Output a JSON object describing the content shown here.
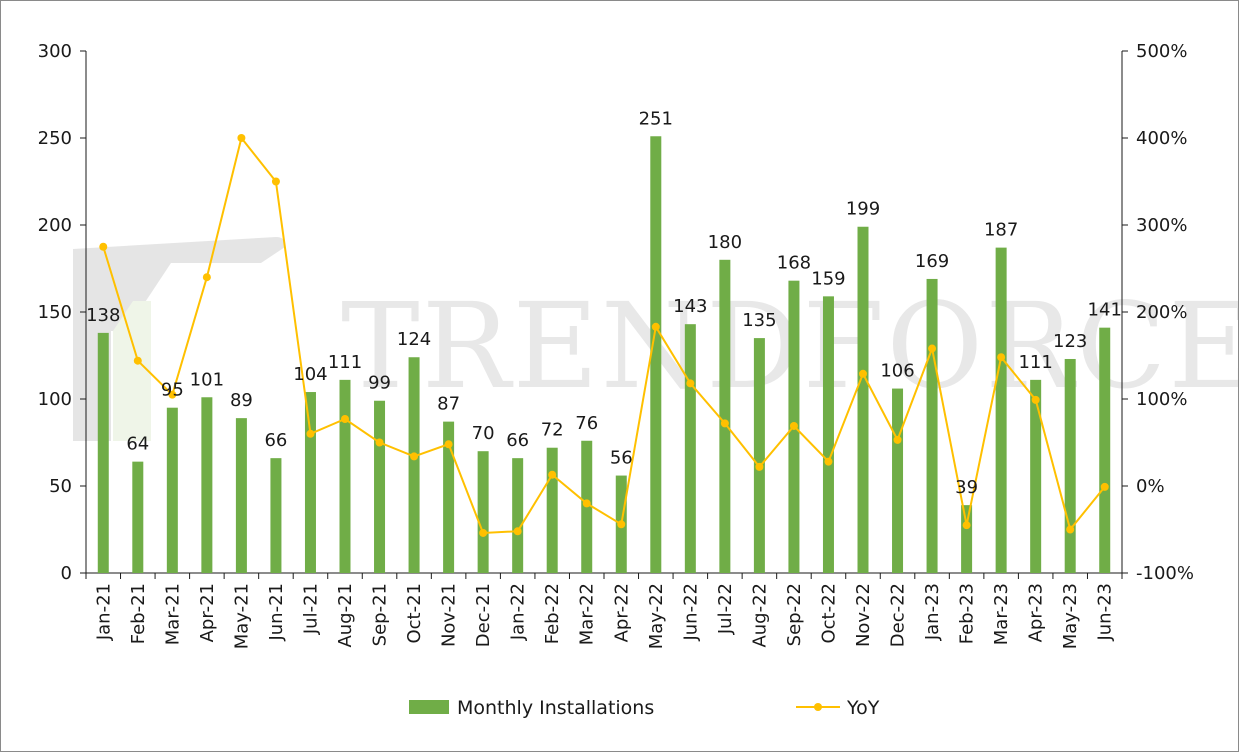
{
  "watermark": {
    "text": "TRENDFORCE"
  },
  "chart_data": {
    "type": "bar",
    "categories": [
      "Jan-21",
      "Feb-21",
      "Mar-21",
      "Apr-21",
      "May-21",
      "Jun-21",
      "Jul-21",
      "Aug-21",
      "Sep-21",
      "Oct-21",
      "Nov-21",
      "Dec-21",
      "Jan-22",
      "Feb-22",
      "Mar-22",
      "Apr-22",
      "May-22",
      "Jun-22",
      "Jul-22",
      "Aug-22",
      "Sep-22",
      "Oct-22",
      "Nov-22",
      "Dec-22",
      "Jan-23",
      "Feb-23",
      "Mar-23",
      "Apr-23",
      "May-23",
      "Jun-23"
    ],
    "series": [
      {
        "name": "Monthly Installations",
        "type": "bar",
        "axis": "left",
        "color": "#70ad47",
        "values": [
          138,
          64,
          95,
          101,
          89,
          66,
          104,
          111,
          99,
          124,
          87,
          70,
          66,
          72,
          76,
          56,
          251,
          143,
          180,
          135,
          168,
          159,
          199,
          106,
          169,
          39,
          187,
          111,
          123,
          141
        ]
      },
      {
        "name": "YoY",
        "type": "line",
        "axis": "right",
        "color": "#ffc000",
        "values": [
          2.75,
          1.44,
          1.05,
          2.4,
          4.0,
          3.5,
          0.6,
          0.77,
          0.5,
          0.34,
          0.48,
          -0.54,
          -0.52,
          0.13,
          -0.2,
          -0.44,
          1.83,
          1.18,
          0.72,
          0.22,
          0.69,
          0.28,
          1.29,
          0.53,
          1.58,
          -0.45,
          1.48,
          0.99,
          -0.5,
          -0.01
        ]
      }
    ],
    "y_left": {
      "ylim": [
        0,
        300
      ],
      "ticks": [
        "0",
        "50",
        "100",
        "150",
        "200",
        "250",
        "300"
      ]
    },
    "y_right": {
      "ylim": [
        -1,
        5
      ],
      "ticks": [
        "-100%",
        "0%",
        "100%",
        "200%",
        "300%",
        "400%",
        "500%"
      ]
    },
    "legend": {
      "position": "bottom",
      "entries": [
        "Monthly Installations",
        "YoY"
      ]
    },
    "title": "",
    "xlabel": "",
    "ylabel": ""
  }
}
